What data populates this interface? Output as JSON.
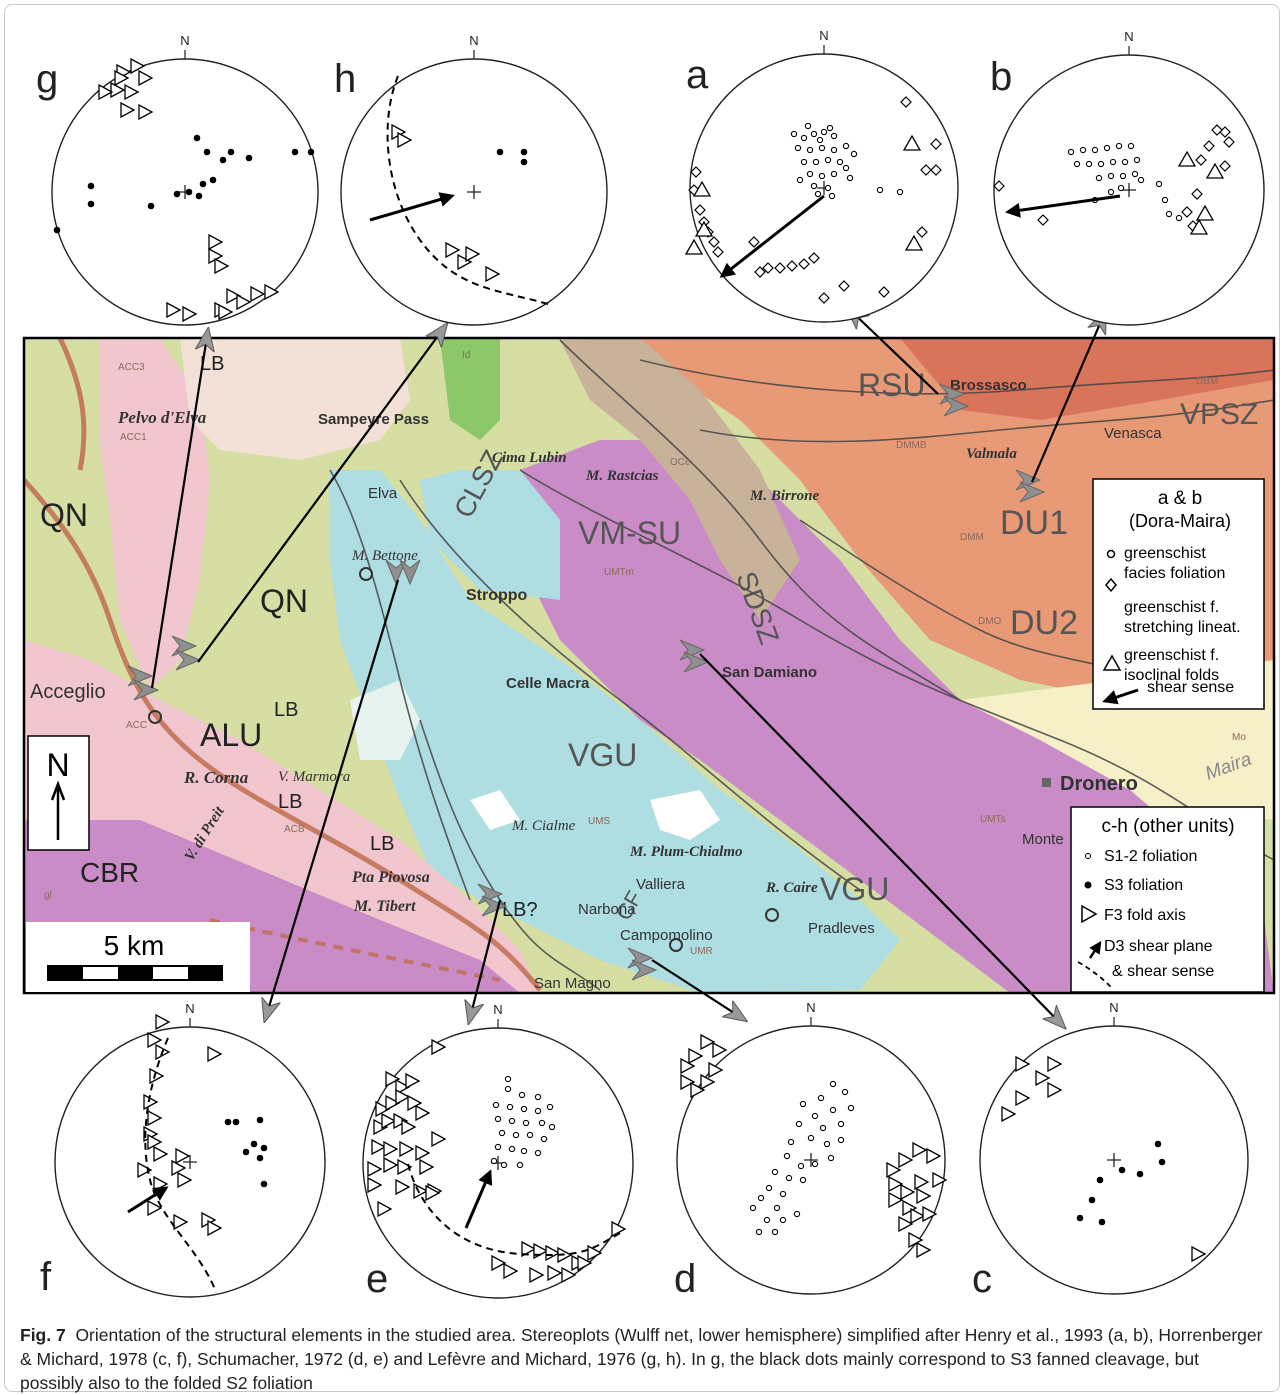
{
  "north_label": "N",
  "stereonets": [
    {
      "id": "g",
      "label": "g"
    },
    {
      "id": "h",
      "label": "h"
    },
    {
      "id": "a",
      "label": "a"
    },
    {
      "id": "b",
      "label": "b"
    },
    {
      "id": "f",
      "label": "f"
    },
    {
      "id": "e",
      "label": "e"
    },
    {
      "id": "d",
      "label": "d"
    },
    {
      "id": "c",
      "label": "c"
    }
  ],
  "map": {
    "units": [
      "QN",
      "QN",
      "ALU",
      "CBR",
      "VGU",
      "VGU",
      "VM-SU",
      "DU1",
      "DU2",
      "RSU",
      "VPSZ",
      "CLSZ",
      "SDSZ",
      "CF"
    ],
    "fault_labels": [
      "LB",
      "LB",
      "LB",
      "LB",
      "LB?"
    ],
    "places": [
      "Pelvo d'Elva",
      "Acceglio",
      "Elva",
      "Sampeyre Pass",
      "Cima Lubin",
      "M. Bettone",
      "Stroppo",
      "Celle Macra",
      "San Damiano",
      "Dronero",
      "Brossasco",
      "Venasca",
      "Valmala",
      "M. Birrone",
      "M. Rastcias",
      "V. Marmora",
      "R. Corna",
      "V. di Preit",
      "Pta Piovosa",
      "M. Tibert",
      "M. Cialme",
      "M. Plum-Chialmo",
      "Valliera",
      "Narbona",
      "Campomolino",
      "R. Caire",
      "Pradleves",
      "San Magno",
      "Monte",
      "Maira"
    ],
    "small_codes": [
      "ACC3",
      "ACC1",
      "ACC",
      "ACB",
      "OCe",
      "UMTm",
      "UMTs",
      "DMM",
      "DMMB",
      "DMO",
      "DBM",
      "UMS",
      "UMR",
      "Id",
      "gl",
      "Mo"
    ],
    "north_arrow": "N",
    "scale_label": "5 km"
  },
  "legend_ab": {
    "title1": "a & b",
    "title2": "(Dora-Maira)",
    "items": [
      {
        "line1": "greenschist",
        "line2": "facies foliation"
      },
      {
        "line1": "greenschist f.",
        "line2": "stretching lineat."
      },
      {
        "line1": "greenschist f.",
        "line2": "isoclinal folds"
      },
      {
        "line1": "shear sense",
        "line2": ""
      }
    ]
  },
  "legend_ch": {
    "title": "c-h (other units)",
    "items": [
      "S1-2 foliation",
      "S3 foliation",
      "F3 fold axis",
      "D3 shear plane",
      "& shear sense"
    ]
  },
  "caption": {
    "label": "Fig. 7",
    "text": "Orientation of the structural elements in the studied area. Stereoplots (Wulff net, lower hemisphere) simplified after Henry et al., 1993 (a, b), Horrenberger & Michard, 1978 (c, f), Schumacher, 1972 (d, e) and Lefèvre and Michard, 1976 (g, h). In g, the black dots mainly correspond to S3 fanned cleavage, but possibly also to the folded S2 foliation"
  },
  "colors": {
    "alu_green": "#d6dea4",
    "vgu_blue": "#aedde2",
    "vmsu_magenta": "#c98cc7",
    "dm_orange": "#e89a76",
    "ld_pink": "#f1c6cf",
    "tan": "#c9b29a",
    "fault_brown": "#c06d50",
    "link": "#2d6db5"
  }
}
